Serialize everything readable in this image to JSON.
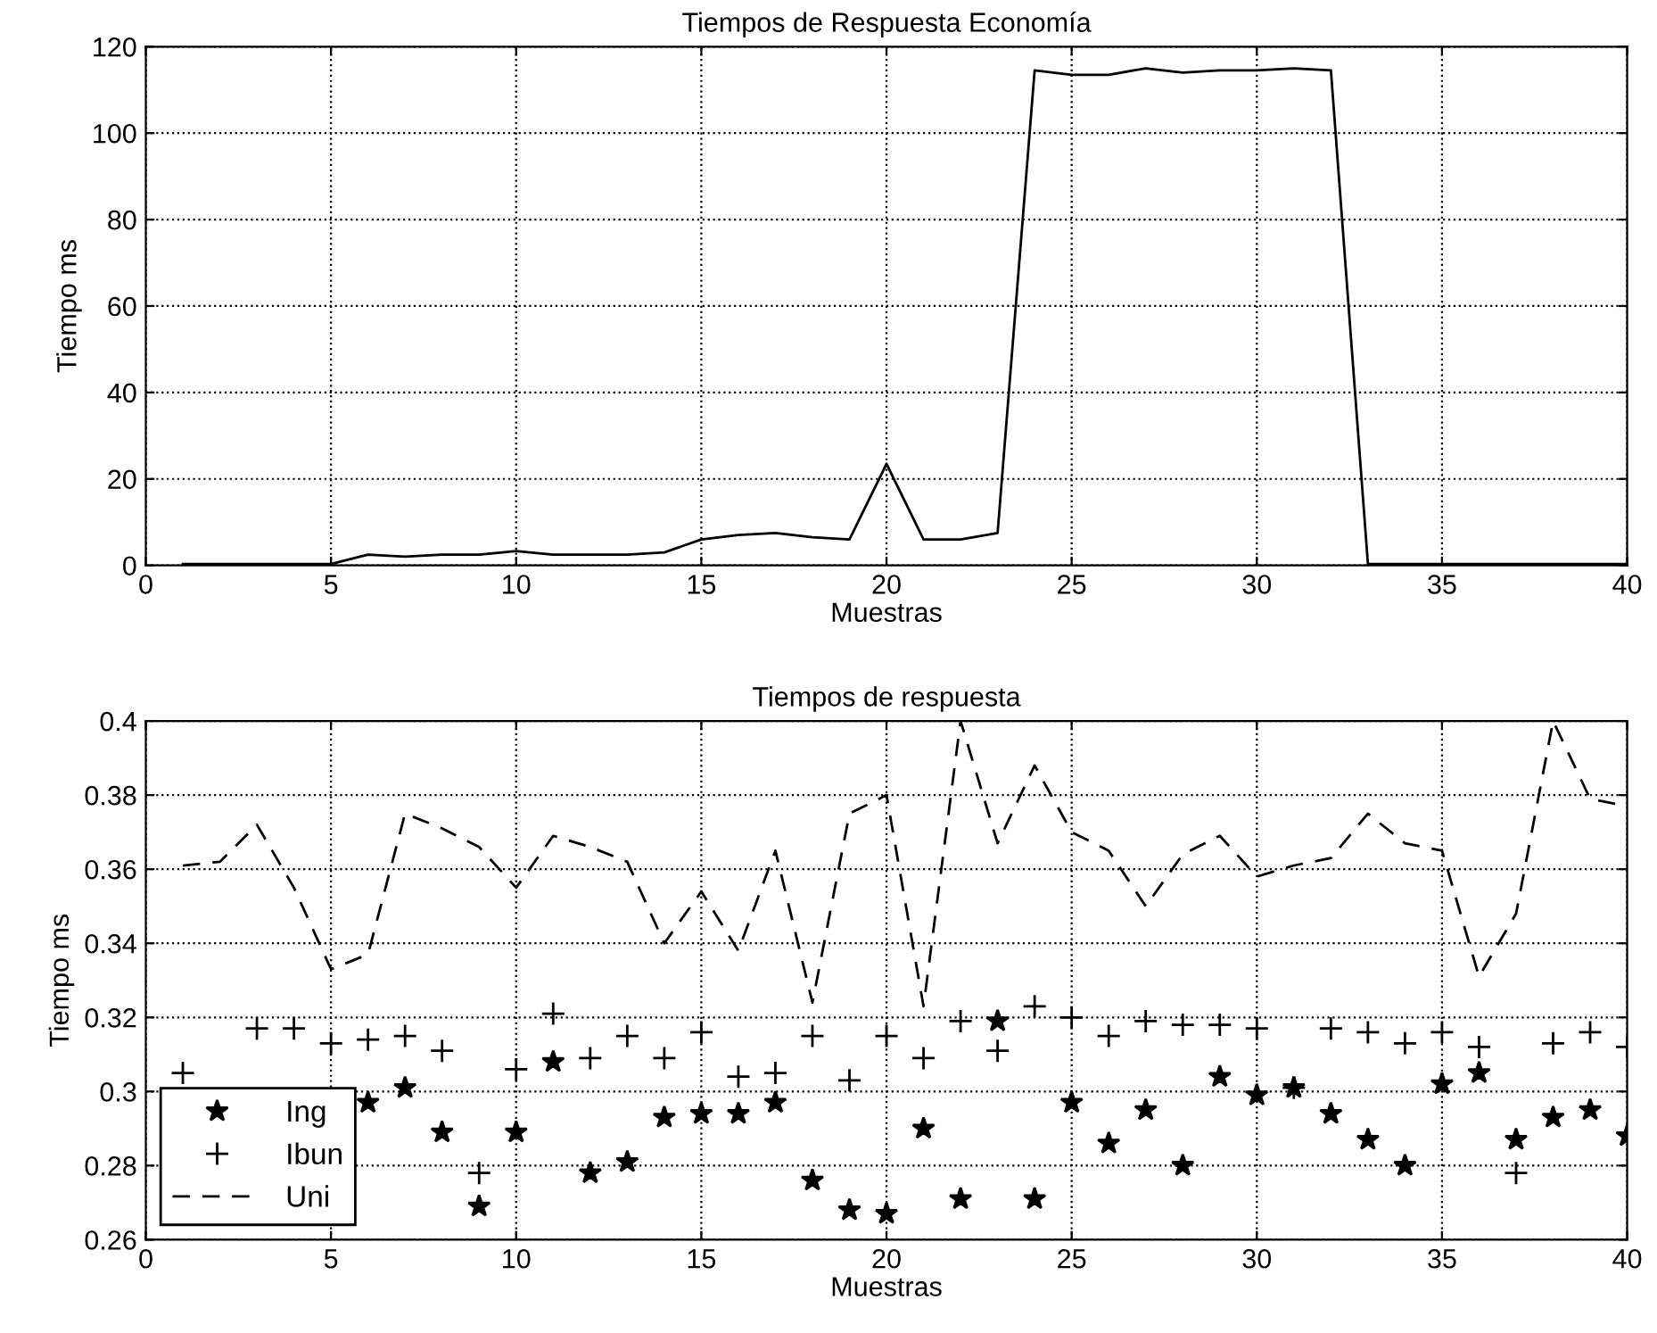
{
  "chart_data": [
    {
      "type": "line",
      "title": "Tiempos de Respuesta Economía",
      "xlabel": "Muestras",
      "ylabel": "Tiempo ms",
      "x": [
        1,
        2,
        3,
        4,
        5,
        6,
        7,
        8,
        9,
        10,
        11,
        12,
        13,
        14,
        15,
        16,
        17,
        18,
        19,
        20,
        21,
        22,
        23,
        24,
        25,
        26,
        27,
        28,
        29,
        30,
        31,
        32,
        33,
        34,
        35,
        36,
        37,
        38,
        39,
        40
      ],
      "series": [
        {
          "color": "#000000",
          "line_style": "solid",
          "marker": "none",
          "values": [
            0.3,
            0.3,
            0.3,
            0.3,
            0.3,
            2.5,
            2,
            2.5,
            2.5,
            3.3,
            2.5,
            2.5,
            2.5,
            3,
            6,
            7,
            7.5,
            6.5,
            6,
            23.5,
            6,
            6,
            7.5,
            114.5,
            113.5,
            113.5,
            115,
            114,
            114.5,
            114.5,
            115,
            114.5,
            0.3,
            0.3,
            0.3,
            0.3,
            0.3,
            0.3,
            0.3,
            0.3
          ]
        }
      ],
      "xlim": [
        0,
        40
      ],
      "xticks": [
        0,
        5,
        10,
        15,
        20,
        25,
        30,
        35,
        40
      ],
      "ylim": [
        0,
        120
      ],
      "yticks": [
        0,
        20,
        40,
        60,
        80,
        100,
        120
      ],
      "grid": true,
      "legend": false
    },
    {
      "type": "scatter",
      "title": "Tiempos de respuesta",
      "xlabel": "Muestras",
      "ylabel": "Tiempo ms",
      "x": [
        1,
        2,
        3,
        4,
        5,
        6,
        7,
        8,
        9,
        10,
        11,
        12,
        13,
        14,
        15,
        16,
        17,
        18,
        19,
        20,
        21,
        22,
        23,
        24,
        25,
        26,
        27,
        28,
        29,
        30,
        31,
        32,
        33,
        34,
        35,
        36,
        37,
        38,
        39,
        40
      ],
      "series": [
        {
          "name": "Ing",
          "color": "#000000",
          "marker": "star",
          "values": [
            null,
            null,
            null,
            null,
            null,
            0.297,
            0.301,
            0.289,
            0.269,
            0.289,
            0.308,
            0.278,
            0.281,
            0.293,
            0.294,
            0.294,
            0.297,
            0.276,
            0.268,
            0.267,
            0.29,
            0.271,
            0.319,
            0.271,
            0.297,
            0.286,
            0.295,
            0.28,
            0.304,
            0.299,
            0.301,
            0.294,
            0.287,
            0.28,
            0.302,
            0.305,
            0.287,
            0.293,
            0.295,
            0.288
          ]
        },
        {
          "name": "Ibun",
          "color": "#000000",
          "marker": "cross",
          "values": [
            0.305,
            null,
            0.317,
            0.317,
            0.313,
            0.314,
            0.315,
            0.311,
            0.278,
            0.306,
            0.321,
            0.309,
            0.315,
            0.309,
            0.316,
            0.304,
            0.305,
            0.315,
            0.303,
            0.315,
            0.309,
            0.319,
            0.311,
            0.323,
            0.32,
            0.315,
            0.319,
            0.318,
            0.318,
            0.317,
            0.301,
            0.317,
            0.316,
            0.313,
            0.316,
            0.312,
            0.278,
            0.313,
            0.316,
            0.312
          ]
        },
        {
          "name": "Uni",
          "type": "line",
          "color": "#000000",
          "line_style": "dashed",
          "marker": "none",
          "values": [
            0.361,
            0.362,
            0.372,
            0.355,
            0.333,
            0.337,
            0.375,
            0.371,
            0.366,
            0.355,
            0.369,
            0.366,
            0.362,
            0.34,
            0.354,
            0.338,
            0.365,
            0.324,
            0.375,
            0.38,
            0.323,
            0.4,
            0.367,
            0.388,
            0.37,
            0.365,
            0.35,
            0.364,
            0.369,
            0.358,
            0.361,
            0.363,
            0.375,
            0.367,
            0.365,
            0.331,
            0.348,
            0.4,
            0.379,
            0.377
          ]
        }
      ],
      "xlim": [
        0,
        40
      ],
      "xticks": [
        0,
        5,
        10,
        15,
        20,
        25,
        30,
        35,
        40
      ],
      "ylim": [
        0.26,
        0.4
      ],
      "yticks": [
        0.26,
        0.28,
        0.3,
        0.32,
        0.34,
        0.36,
        0.38,
        0.4
      ],
      "grid": true,
      "legend": "bottom left"
    }
  ]
}
